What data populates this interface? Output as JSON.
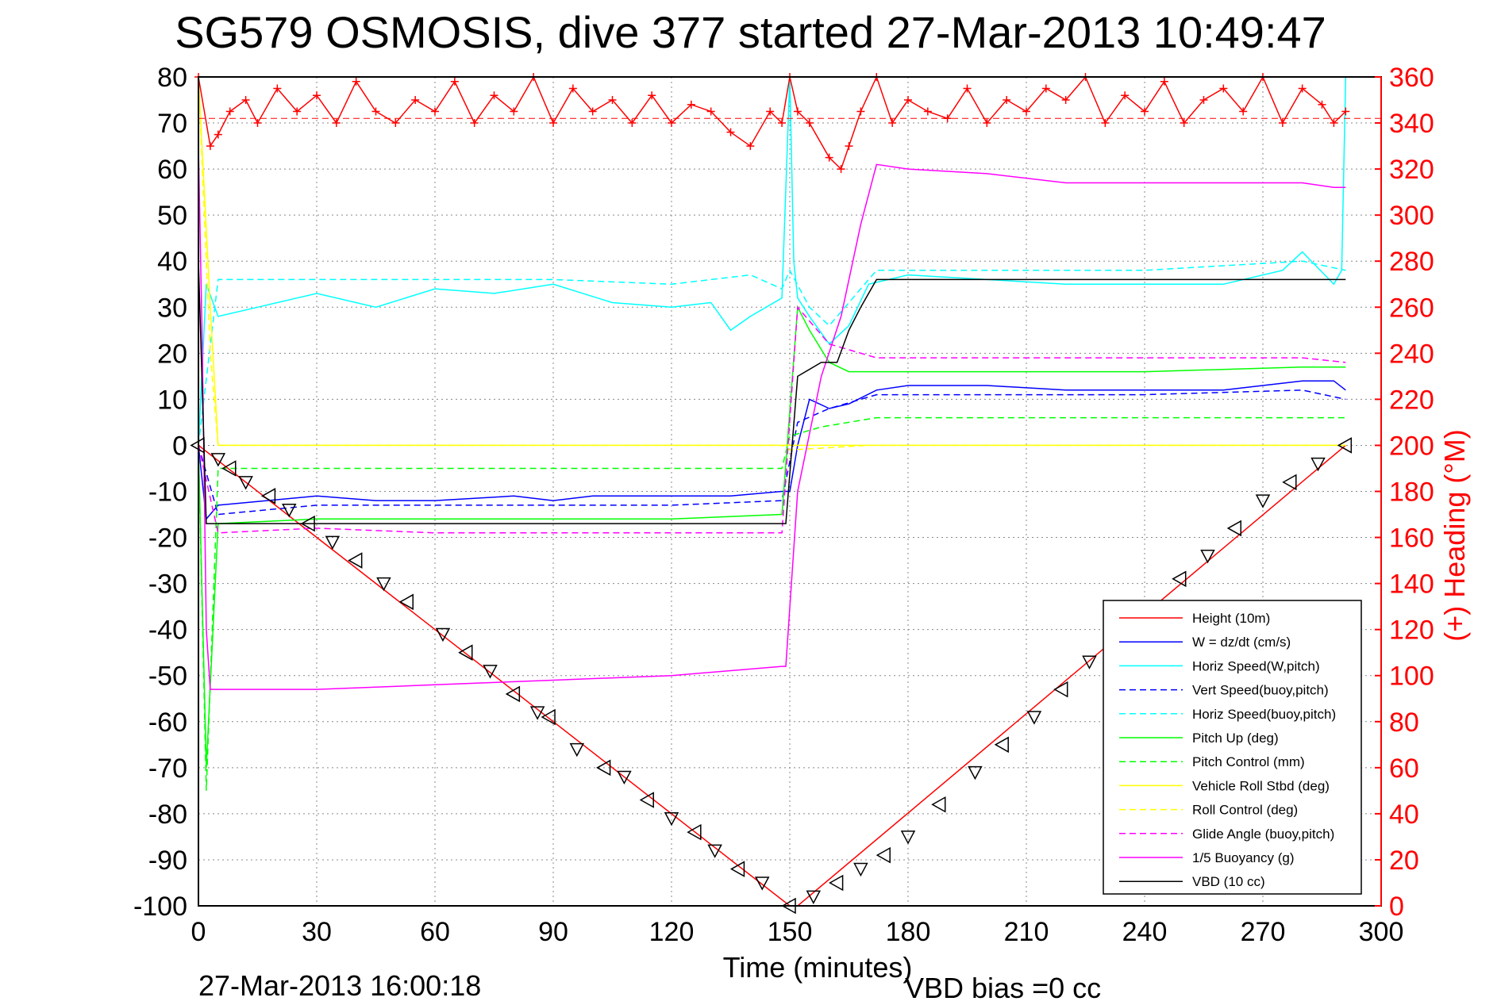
{
  "title": "SG579 OSMOSIS, dive 377 started 27-Mar-2013 10:49:47",
  "footer_left": "27-Mar-2013 16:00:18",
  "footer_right": "VBD bias =0 cc",
  "colors": {
    "red": "#ff0000",
    "blue": "#0000ff",
    "cyan": "#00ffff",
    "green": "#00ff00",
    "yellow": "#ffff00",
    "magenta": "#ff00ff",
    "black": "#000000"
  },
  "chart_data": {
    "type": "line",
    "title": "SG579 OSMOSIS, dive 377 started 27-Mar-2013 10:49:47",
    "xlabel": "Time (minutes)",
    "ylabel": "",
    "ylabel_right": "(+) Heading (°M)",
    "xlim": [
      0,
      300
    ],
    "ylim": [
      -100,
      80
    ],
    "ylim_right": [
      0,
      360
    ],
    "xticks": [
      0,
      30,
      60,
      90,
      120,
      150,
      180,
      210,
      240,
      270,
      300
    ],
    "yticks": [
      -100,
      -90,
      -80,
      -70,
      -60,
      -50,
      -40,
      -30,
      -20,
      -10,
      0,
      10,
      20,
      30,
      40,
      50,
      60,
      70,
      80
    ],
    "yticks_right": [
      0,
      20,
      40,
      60,
      80,
      100,
      120,
      140,
      160,
      180,
      200,
      220,
      240,
      260,
      280,
      300,
      320,
      340,
      360
    ],
    "grid": true,
    "legend_position": "bottom-right",
    "legend": [
      {
        "label": "Height (10m)",
        "color": "#ff0000",
        "style": "solid"
      },
      {
        "label": "W = dz/dt (cm/s)",
        "color": "#0000ff",
        "style": "solid"
      },
      {
        "label": "Horiz Speed(W,pitch)",
        "color": "#00ffff",
        "style": "solid"
      },
      {
        "label": "Vert Speed(buoy,pitch)",
        "color": "#0000ff",
        "style": "dashed"
      },
      {
        "label": "Horiz Speed(buoy,pitch)",
        "color": "#00ffff",
        "style": "dashed"
      },
      {
        "label": "Pitch Up (deg)",
        "color": "#00ff00",
        "style": "solid"
      },
      {
        "label": "Pitch Control (mm)",
        "color": "#00ff00",
        "style": "dashed"
      },
      {
        "label": "Vehicle Roll Stbd (deg)",
        "color": "#ffff00",
        "style": "solid"
      },
      {
        "label": "Roll Control (deg)",
        "color": "#ffff00",
        "style": "dashed"
      },
      {
        "label": "Glide Angle (buoy,pitch)",
        "color": "#ff00ff",
        "style": "dashed"
      },
      {
        "label": "1/5 Buoyancy (g)",
        "color": "#ff00ff",
        "style": "solid"
      },
      {
        "label": "VBD (10 cc)",
        "color": "#000000",
        "style": "solid"
      }
    ],
    "series": [
      {
        "name": "Height (10m)",
        "color": "#ff0000",
        "dash": false,
        "axis": "left",
        "x": [
          0,
          150,
          152,
          291
        ],
        "y": [
          0,
          -100,
          -100,
          0
        ]
      },
      {
        "name": "W = dz/dt (cm/s)",
        "color": "#0000ff",
        "dash": false,
        "axis": "left",
        "x": [
          0,
          2,
          5,
          30,
          45,
          50,
          60,
          80,
          90,
          100,
          120,
          135,
          148,
          150,
          152,
          155,
          160,
          165,
          172,
          180,
          200,
          220,
          240,
          260,
          280,
          288,
          291
        ],
        "y": [
          0,
          -16,
          -13,
          -11,
          -12,
          -12,
          -12,
          -11,
          -12,
          -11,
          -11,
          -11,
          -10,
          -10,
          0,
          10,
          8,
          9,
          12,
          13,
          13,
          12,
          12,
          12,
          14,
          14,
          12
        ]
      },
      {
        "name": "Horiz Speed(W,pitch)",
        "color": "#00ffff",
        "dash": false,
        "axis": "left",
        "x": [
          0,
          2,
          5,
          15,
          30,
          45,
          60,
          75,
          90,
          105,
          120,
          130,
          135,
          140,
          148,
          150,
          151,
          152,
          155,
          160,
          165,
          170,
          180,
          200,
          220,
          240,
          260,
          275,
          280,
          288,
          290,
          291
        ],
        "y": [
          0,
          35,
          28,
          30,
          33,
          30,
          34,
          33,
          35,
          31,
          30,
          31,
          25,
          28,
          32,
          80,
          40,
          32,
          28,
          22,
          26,
          35,
          37,
          36,
          35,
          35,
          35,
          38,
          42,
          35,
          38,
          80
        ]
      },
      {
        "name": "Vert Speed(buoy,pitch)",
        "color": "#0000ff",
        "dash": true,
        "axis": "left",
        "x": [
          0,
          5,
          30,
          60,
          90,
          120,
          148,
          152,
          160,
          172,
          200,
          240,
          280,
          291
        ],
        "y": [
          0,
          -15,
          -13,
          -13,
          -13,
          -13,
          -12,
          5,
          8,
          11,
          11,
          11,
          12,
          10
        ]
      },
      {
        "name": "Horiz Speed(buoy,pitch)",
        "color": "#00ffff",
        "dash": true,
        "axis": "left",
        "x": [
          0,
          5,
          30,
          60,
          90,
          120,
          140,
          148,
          150,
          155,
          160,
          172,
          200,
          240,
          280,
          291
        ],
        "y": [
          0,
          36,
          36,
          36,
          36,
          35,
          37,
          34,
          38,
          30,
          26,
          38,
          38,
          38,
          40,
          38
        ]
      },
      {
        "name": "Pitch Up (deg)",
        "color": "#00ff00",
        "dash": false,
        "axis": "left",
        "x": [
          0,
          2,
          5,
          30,
          60,
          90,
          120,
          148,
          152,
          155,
          160,
          165,
          172,
          200,
          240,
          280,
          291
        ],
        "y": [
          0,
          -70,
          -17,
          -16,
          -16,
          -16,
          -16,
          -15,
          30,
          25,
          18,
          16,
          16,
          16,
          16,
          17,
          17
        ]
      },
      {
        "name": "Pitch Control (mm)",
        "color": "#00ff00",
        "dash": true,
        "axis": "left",
        "x": [
          0,
          2,
          5,
          148,
          150,
          158,
          165,
          172,
          291
        ],
        "y": [
          0,
          -75,
          -5,
          -5,
          2,
          4,
          5,
          6,
          6
        ]
      },
      {
        "name": "Vehicle Roll Stbd (deg)",
        "color": "#ffff00",
        "dash": false,
        "axis": "left",
        "x": [
          0,
          3,
          5,
          10,
          30,
          60,
          90,
          120,
          148,
          150,
          170,
          200,
          240,
          280,
          291
        ],
        "y": [
          80,
          30,
          0,
          0,
          0,
          0,
          0,
          0,
          0,
          0,
          0,
          0,
          0,
          0,
          0
        ]
      },
      {
        "name": "Roll Control (deg)",
        "color": "#ffff00",
        "dash": true,
        "axis": "left",
        "x": [
          0,
          3,
          5,
          148,
          150,
          170,
          291
        ],
        "y": [
          80,
          20,
          0,
          0,
          -1,
          0,
          0
        ]
      },
      {
        "name": "Glide Angle (buoy,pitch)",
        "color": "#ff00ff",
        "dash": true,
        "axis": "left",
        "x": [
          0,
          5,
          30,
          60,
          90,
          120,
          148,
          152,
          160,
          172,
          200,
          240,
          280,
          291
        ],
        "y": [
          0,
          -19,
          -18,
          -19,
          -19,
          -19,
          -19,
          30,
          22,
          19,
          19,
          19,
          19,
          18
        ]
      },
      {
        "name": "1/5 Buoyancy (g)",
        "color": "#ff00ff",
        "dash": false,
        "axis": "left",
        "x": [
          0,
          1,
          2,
          3,
          5,
          30,
          60,
          90,
          120,
          148,
          149,
          152,
          158,
          163,
          168,
          172,
          180,
          200,
          220,
          240,
          260,
          280,
          288,
          291
        ],
        "y": [
          65,
          20,
          -40,
          -53,
          -53,
          -53,
          -52,
          -51,
          -50,
          -48,
          -48,
          -10,
          15,
          28,
          48,
          61,
          60,
          59,
          57,
          57,
          57,
          57,
          56,
          56
        ]
      },
      {
        "name": "VBD (10 cc)",
        "color": "#000000",
        "dash": false,
        "axis": "left",
        "x": [
          0,
          2,
          5,
          148,
          149,
          152,
          158,
          162,
          165,
          168,
          172,
          291
        ],
        "y": [
          40,
          -17,
          -17,
          -17,
          -17,
          15,
          18,
          18,
          25,
          30,
          36,
          36
        ]
      },
      {
        "name": "Heading",
        "color": "#ff0000",
        "dash": false,
        "axis": "right",
        "marker": "+",
        "x": [
          0,
          3,
          5,
          8,
          12,
          15,
          20,
          25,
          30,
          35,
          40,
          45,
          50,
          55,
          60,
          65,
          70,
          75,
          80,
          85,
          90,
          95,
          100,
          105,
          110,
          115,
          120,
          125,
          130,
          135,
          140,
          145,
          148,
          150,
          152,
          155,
          160,
          163,
          165,
          168,
          172,
          176,
          180,
          185,
          190,
          195,
          200,
          205,
          210,
          215,
          220,
          225,
          230,
          235,
          240,
          245,
          250,
          255,
          260,
          265,
          270,
          275,
          280,
          285,
          288,
          291
        ],
        "y": [
          360,
          330,
          335,
          345,
          350,
          340,
          355,
          345,
          352,
          340,
          358,
          345,
          340,
          350,
          345,
          358,
          340,
          352,
          345,
          360,
          340,
          355,
          345,
          350,
          340,
          352,
          340,
          348,
          345,
          336,
          330,
          345,
          340,
          360,
          345,
          340,
          325,
          320,
          330,
          345,
          360,
          340,
          350,
          345,
          342,
          355,
          340,
          350,
          345,
          355,
          350,
          360,
          340,
          352,
          345,
          358,
          340,
          350,
          355,
          345,
          360,
          340,
          355,
          348,
          340,
          345
        ]
      }
    ],
    "markers": {
      "name": "profile markers",
      "x": [
        0,
        5,
        8,
        12,
        18,
        23,
        28,
        34,
        40,
        47,
        53,
        62,
        68,
        74,
        80,
        86,
        89,
        96,
        103,
        108,
        114,
        120,
        126,
        131,
        137,
        143,
        150,
        156,
        162,
        168,
        174,
        180,
        188,
        197,
        204,
        212,
        219,
        226,
        234,
        241,
        249,
        256,
        263,
        270,
        277,
        284,
        291
      ],
      "y": [
        0,
        -3,
        -5,
        -8,
        -11,
        -14,
        -17,
        -21,
        -25,
        -30,
        -34,
        -41,
        -45,
        -49,
        -54,
        -58,
        -59,
        -66,
        -70,
        -72,
        -77,
        -81,
        -84,
        -88,
        -92,
        -95,
        -100,
        -98,
        -95,
        -92,
        -89,
        -85,
        -78,
        -71,
        -65,
        -59,
        -53,
        -47,
        -41,
        -35,
        -29,
        -24,
        -18,
        -12,
        -8,
        -4,
        0
      ]
    }
  }
}
